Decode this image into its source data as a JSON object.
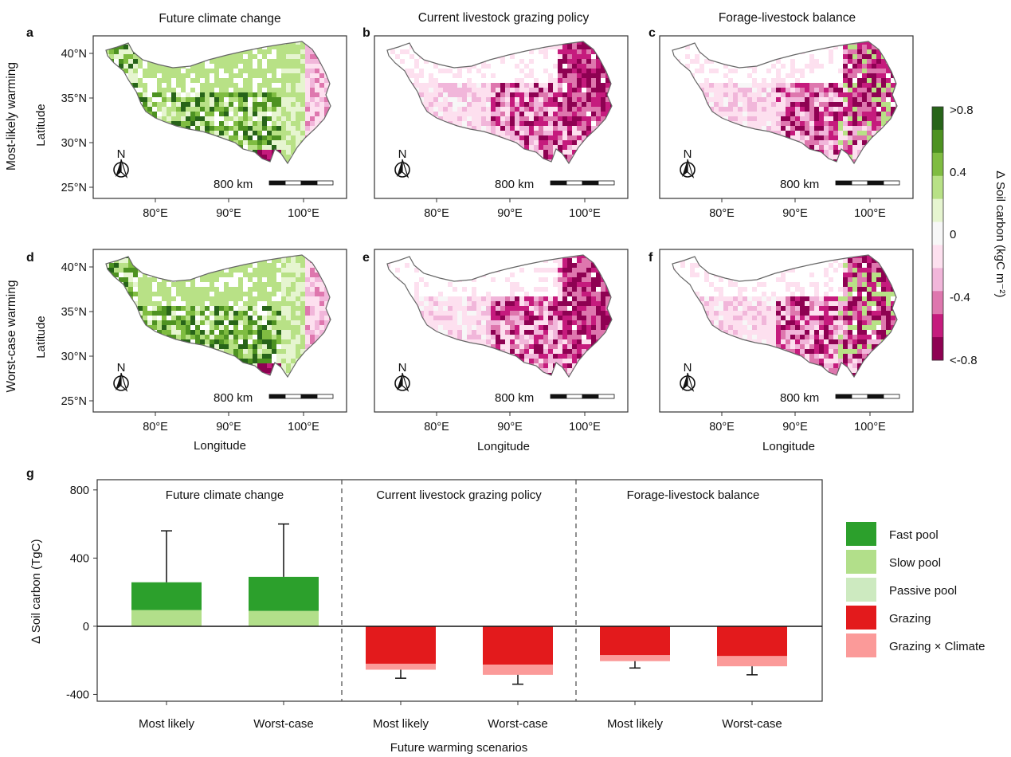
{
  "maps": {
    "column_titles": [
      "Future climate change",
      "Current livestock grazing policy",
      "Forage-livestock balance"
    ],
    "row_titles": [
      "Most-likely warming",
      "Worst-case warming"
    ],
    "panel_letters": [
      "a",
      "b",
      "c",
      "d",
      "e",
      "f"
    ],
    "lat_ticks": [
      "40°N",
      "35°N",
      "30°N",
      "25°N"
    ],
    "lon_ticks": [
      "80°E",
      "90°E",
      "100°E"
    ],
    "ylabel": "Latitude",
    "xlabel": "Longitude",
    "north_label": "N",
    "scalebar_label": "800 km",
    "colorbar": {
      "title": "∆ Soil carbon (kgC m⁻²)",
      "tick_labels": [
        ">0.8",
        "0.4",
        "0",
        "-0.4",
        "<-0.8"
      ],
      "colors": [
        "#276419",
        "#4d9221",
        "#7fbc41",
        "#b8e186",
        "#e6f5d0",
        "#f7f7f7",
        "#fde0ef",
        "#f1b6da",
        "#de77ae",
        "#c51b7d",
        "#8e0152"
      ]
    },
    "panel_patterns": [
      "climate-gain",
      "grazing-loss",
      "balance-loss",
      "climate-gain",
      "grazing-loss",
      "balance-loss"
    ]
  },
  "panel_g": {
    "letter": "g",
    "ylabel": "∆ Soil carbon (TgC)",
    "xlabel": "Future warming scenarios",
    "y_ticks": [
      "800",
      "400",
      "0",
      "-400"
    ],
    "group_labels": [
      "Future climate change",
      "Current livestock grazing policy",
      "Forage-livestock balance"
    ],
    "legend": [
      {
        "label": "Fast pool",
        "color": "#2ca02c"
      },
      {
        "label": "Slow pool",
        "color": "#b2df8a"
      },
      {
        "label": "Passive pool",
        "color": "#cdeac0"
      },
      {
        "label": "Grazing",
        "color": "#e31a1c"
      },
      {
        "label": "Grazing × Climate",
        "color": "#fb9a99"
      }
    ]
  },
  "chart_data": {
    "type": "bar",
    "stacked": true,
    "categories": [
      "Most likely",
      "Worst-case",
      "Most likely",
      "Worst-case",
      "Most likely",
      "Worst-case"
    ],
    "groups": [
      "Future climate change",
      "Current livestock grazing policy",
      "Forage-livestock balance"
    ],
    "ylim": [
      -440,
      860
    ],
    "series": [
      {
        "name": "Slow pool",
        "values": [
          95,
          90,
          0,
          0,
          0,
          0
        ]
      },
      {
        "name": "Fast pool",
        "values": [
          163,
          200,
          0,
          0,
          0,
          0
        ]
      },
      {
        "name": "Passive pool",
        "values": [
          0,
          0,
          0,
          0,
          0,
          0
        ]
      },
      {
        "name": "Grazing",
        "values": [
          0,
          0,
          -220,
          -225,
          -170,
          -175
        ]
      },
      {
        "name": "Grazing × Climate",
        "values": [
          0,
          0,
          -35,
          -60,
          -35,
          -60
        ]
      }
    ],
    "error_bars": [
      560,
      600,
      -305,
      -340,
      -245,
      -285
    ]
  }
}
